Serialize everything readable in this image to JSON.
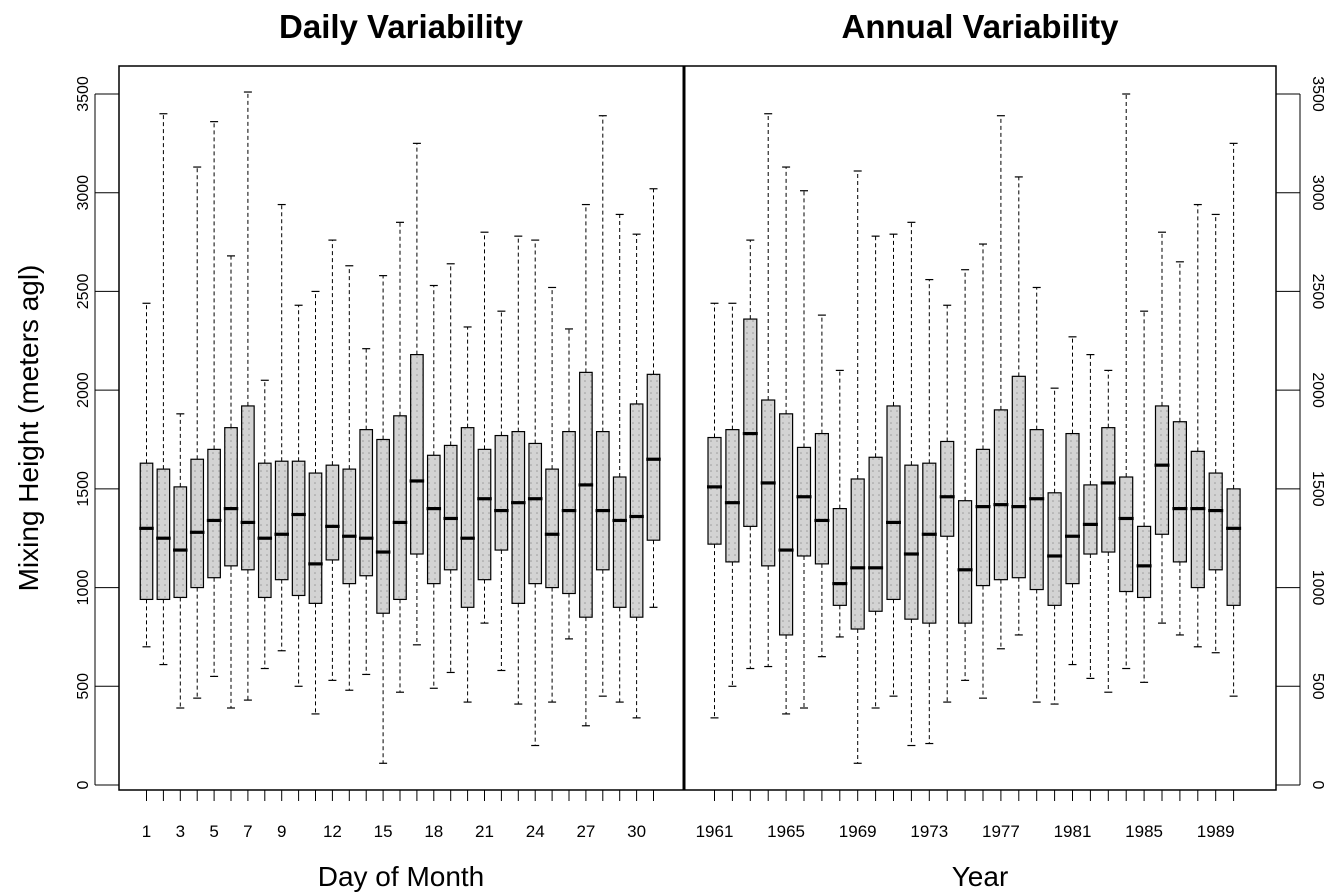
{
  "chart_data": [
    {
      "type": "boxplot",
      "title": "Daily Variability",
      "xlabel": "Day of Month",
      "ylabel": "Mixing Height (meters agl)",
      "ylim": [
        0,
        3500
      ],
      "yticks": [
        0,
        500,
        1000,
        1500,
        2000,
        2500,
        3000,
        3500
      ],
      "y_tick_labels": [
        "0",
        "500",
        "1000",
        "1500",
        "2000",
        "2500",
        "3000",
        "3500"
      ],
      "categories": [
        1,
        2,
        3,
        4,
        5,
        6,
        7,
        8,
        9,
        10,
        11,
        12,
        13,
        14,
        15,
        16,
        17,
        18,
        19,
        20,
        21,
        22,
        23,
        24,
        25,
        26,
        27,
        28,
        29,
        30,
        31
      ],
      "x_tick_labels": [
        "1",
        "3",
        "5",
        "7",
        "9",
        "12",
        "15",
        "18",
        "21",
        "24",
        "27",
        "30"
      ],
      "boxes": [
        {
          "x": 1,
          "min": 700,
          "q1": 940,
          "median": 1300,
          "q3": 1630,
          "max": 2440
        },
        {
          "x": 2,
          "min": 610,
          "q1": 940,
          "median": 1250,
          "q3": 1600,
          "max": 3400
        },
        {
          "x": 3,
          "min": 390,
          "q1": 950,
          "median": 1190,
          "q3": 1510,
          "max": 1880
        },
        {
          "x": 4,
          "min": 440,
          "q1": 1000,
          "median": 1280,
          "q3": 1650,
          "max": 3130
        },
        {
          "x": 5,
          "min": 550,
          "q1": 1050,
          "median": 1340,
          "q3": 1700,
          "max": 3360
        },
        {
          "x": 6,
          "min": 390,
          "q1": 1110,
          "median": 1400,
          "q3": 1810,
          "max": 2680
        },
        {
          "x": 7,
          "min": 430,
          "q1": 1090,
          "median": 1330,
          "q3": 1920,
          "max": 3510
        },
        {
          "x": 8,
          "min": 590,
          "q1": 950,
          "median": 1250,
          "q3": 1630,
          "max": 2050
        },
        {
          "x": 9,
          "min": 680,
          "q1": 1040,
          "median": 1270,
          "q3": 1640,
          "max": 2940
        },
        {
          "x": 10,
          "min": 500,
          "q1": 960,
          "median": 1370,
          "q3": 1640,
          "max": 2430
        },
        {
          "x": 11,
          "min": 360,
          "q1": 920,
          "median": 1120,
          "q3": 1580,
          "max": 2500
        },
        {
          "x": 12,
          "min": 530,
          "q1": 1140,
          "median": 1310,
          "q3": 1620,
          "max": 2760
        },
        {
          "x": 13,
          "min": 480,
          "q1": 1020,
          "median": 1260,
          "q3": 1600,
          "max": 2630
        },
        {
          "x": 14,
          "min": 560,
          "q1": 1060,
          "median": 1250,
          "q3": 1800,
          "max": 2210
        },
        {
          "x": 15,
          "min": 110,
          "q1": 870,
          "median": 1180,
          "q3": 1750,
          "max": 2580
        },
        {
          "x": 16,
          "min": 470,
          "q1": 940,
          "median": 1330,
          "q3": 1870,
          "max": 2850
        },
        {
          "x": 17,
          "min": 710,
          "q1": 1170,
          "median": 1540,
          "q3": 2180,
          "max": 3250
        },
        {
          "x": 18,
          "min": 490,
          "q1": 1020,
          "median": 1400,
          "q3": 1670,
          "max": 2530
        },
        {
          "x": 19,
          "min": 570,
          "q1": 1090,
          "median": 1350,
          "q3": 1720,
          "max": 2640
        },
        {
          "x": 20,
          "min": 420,
          "q1": 900,
          "median": 1250,
          "q3": 1810,
          "max": 2320
        },
        {
          "x": 21,
          "min": 820,
          "q1": 1040,
          "median": 1450,
          "q3": 1700,
          "max": 2800
        },
        {
          "x": 22,
          "min": 580,
          "q1": 1190,
          "median": 1390,
          "q3": 1770,
          "max": 2400
        },
        {
          "x": 23,
          "min": 410,
          "q1": 920,
          "median": 1430,
          "q3": 1790,
          "max": 2780
        },
        {
          "x": 24,
          "min": 200,
          "q1": 1020,
          "median": 1450,
          "q3": 1730,
          "max": 2760
        },
        {
          "x": 25,
          "min": 420,
          "q1": 1000,
          "median": 1270,
          "q3": 1600,
          "max": 2520
        },
        {
          "x": 26,
          "min": 740,
          "q1": 970,
          "median": 1390,
          "q3": 1790,
          "max": 2310
        },
        {
          "x": 27,
          "min": 300,
          "q1": 850,
          "median": 1520,
          "q3": 2090,
          "max": 2940
        },
        {
          "x": 28,
          "min": 450,
          "q1": 1090,
          "median": 1390,
          "q3": 1790,
          "max": 3390
        },
        {
          "x": 29,
          "min": 420,
          "q1": 900,
          "median": 1340,
          "q3": 1560,
          "max": 2890
        },
        {
          "x": 30,
          "min": 340,
          "q1": 850,
          "median": 1360,
          "q3": 1930,
          "max": 2790
        },
        {
          "x": 31,
          "min": 900,
          "q1": 1240,
          "median": 1650,
          "q3": 2080,
          "max": 3020
        }
      ],
      "grid": false
    },
    {
      "type": "boxplot",
      "title": "Annual Variability",
      "xlabel": "Year",
      "ylabel": "",
      "ylim": [
        0,
        3500
      ],
      "yticks": [
        0,
        500,
        1000,
        1500,
        2000,
        2500,
        3000,
        3500
      ],
      "y_tick_labels": [
        "0",
        "500",
        "1000",
        "1500",
        "2000",
        "2500",
        "3000",
        "3500"
      ],
      "categories": [
        1961,
        1962,
        1963,
        1964,
        1965,
        1966,
        1967,
        1968,
        1969,
        1970,
        1971,
        1972,
        1973,
        1974,
        1975,
        1976,
        1977,
        1978,
        1979,
        1980,
        1981,
        1982,
        1983,
        1984,
        1985,
        1986,
        1987,
        1988,
        1989,
        1990
      ],
      "x_tick_labels": [
        "1961",
        "1965",
        "1969",
        "1973",
        "1977",
        "1981",
        "1985",
        "1989"
      ],
      "boxes": [
        {
          "x": 1961,
          "min": 340,
          "q1": 1220,
          "median": 1510,
          "q3": 1760,
          "max": 2440
        },
        {
          "x": 1962,
          "min": 500,
          "q1": 1130,
          "median": 1430,
          "q3": 1800,
          "max": 2440
        },
        {
          "x": 1963,
          "min": 590,
          "q1": 1310,
          "median": 1780,
          "q3": 2360,
          "max": 2760
        },
        {
          "x": 1964,
          "min": 600,
          "q1": 1110,
          "median": 1530,
          "q3": 1950,
          "max": 3400
        },
        {
          "x": 1965,
          "min": 360,
          "q1": 760,
          "median": 1190,
          "q3": 1880,
          "max": 3130
        },
        {
          "x": 1966,
          "min": 390,
          "q1": 1160,
          "median": 1460,
          "q3": 1710,
          "max": 3010
        },
        {
          "x": 1967,
          "min": 650,
          "q1": 1120,
          "median": 1340,
          "q3": 1780,
          "max": 2380
        },
        {
          "x": 1968,
          "min": 750,
          "q1": 910,
          "median": 1020,
          "q3": 1400,
          "max": 2100
        },
        {
          "x": 1969,
          "min": 110,
          "q1": 790,
          "median": 1100,
          "q3": 1550,
          "max": 3110
        },
        {
          "x": 1970,
          "min": 390,
          "q1": 880,
          "median": 1100,
          "q3": 1660,
          "max": 2780
        },
        {
          "x": 1971,
          "min": 450,
          "q1": 940,
          "median": 1330,
          "q3": 1920,
          "max": 2790
        },
        {
          "x": 1972,
          "min": 200,
          "q1": 840,
          "median": 1170,
          "q3": 1620,
          "max": 2850
        },
        {
          "x": 1973,
          "min": 210,
          "q1": 820,
          "median": 1270,
          "q3": 1630,
          "max": 2560
        },
        {
          "x": 1974,
          "min": 420,
          "q1": 1260,
          "median": 1460,
          "q3": 1740,
          "max": 2430
        },
        {
          "x": 1975,
          "min": 530,
          "q1": 820,
          "median": 1090,
          "q3": 1440,
          "max": 2610
        },
        {
          "x": 1976,
          "min": 440,
          "q1": 1010,
          "median": 1410,
          "q3": 1700,
          "max": 2740
        },
        {
          "x": 1977,
          "min": 690,
          "q1": 1040,
          "median": 1420,
          "q3": 1900,
          "max": 3390
        },
        {
          "x": 1978,
          "min": 760,
          "q1": 1050,
          "median": 1410,
          "q3": 2070,
          "max": 3080
        },
        {
          "x": 1979,
          "min": 420,
          "q1": 990,
          "median": 1450,
          "q3": 1800,
          "max": 2520
        },
        {
          "x": 1980,
          "min": 410,
          "q1": 910,
          "median": 1160,
          "q3": 1480,
          "max": 2010
        },
        {
          "x": 1981,
          "min": 610,
          "q1": 1020,
          "median": 1260,
          "q3": 1780,
          "max": 2270
        },
        {
          "x": 1982,
          "min": 540,
          "q1": 1170,
          "median": 1320,
          "q3": 1520,
          "max": 2180
        },
        {
          "x": 1983,
          "min": 470,
          "q1": 1180,
          "median": 1530,
          "q3": 1810,
          "max": 2100
        },
        {
          "x": 1984,
          "min": 590,
          "q1": 980,
          "median": 1350,
          "q3": 1560,
          "max": 3500
        },
        {
          "x": 1985,
          "min": 520,
          "q1": 950,
          "median": 1110,
          "q3": 1310,
          "max": 2400
        },
        {
          "x": 1986,
          "min": 820,
          "q1": 1270,
          "median": 1620,
          "q3": 1920,
          "max": 2800
        },
        {
          "x": 1987,
          "min": 760,
          "q1": 1130,
          "median": 1400,
          "q3": 1840,
          "max": 2650
        },
        {
          "x": 1988,
          "min": 700,
          "q1": 1000,
          "median": 1400,
          "q3": 1690,
          "max": 2940
        },
        {
          "x": 1989,
          "min": 670,
          "q1": 1090,
          "median": 1390,
          "q3": 1580,
          "max": 2890
        },
        {
          "x": 1990,
          "min": 450,
          "q1": 910,
          "median": 1300,
          "q3": 1500,
          "max": 3250
        }
      ],
      "grid": false
    }
  ],
  "colors": {
    "box_fill": "#d3d3d3",
    "box_stroke": "#000000",
    "median": "#000000",
    "whisker": "#000000"
  }
}
